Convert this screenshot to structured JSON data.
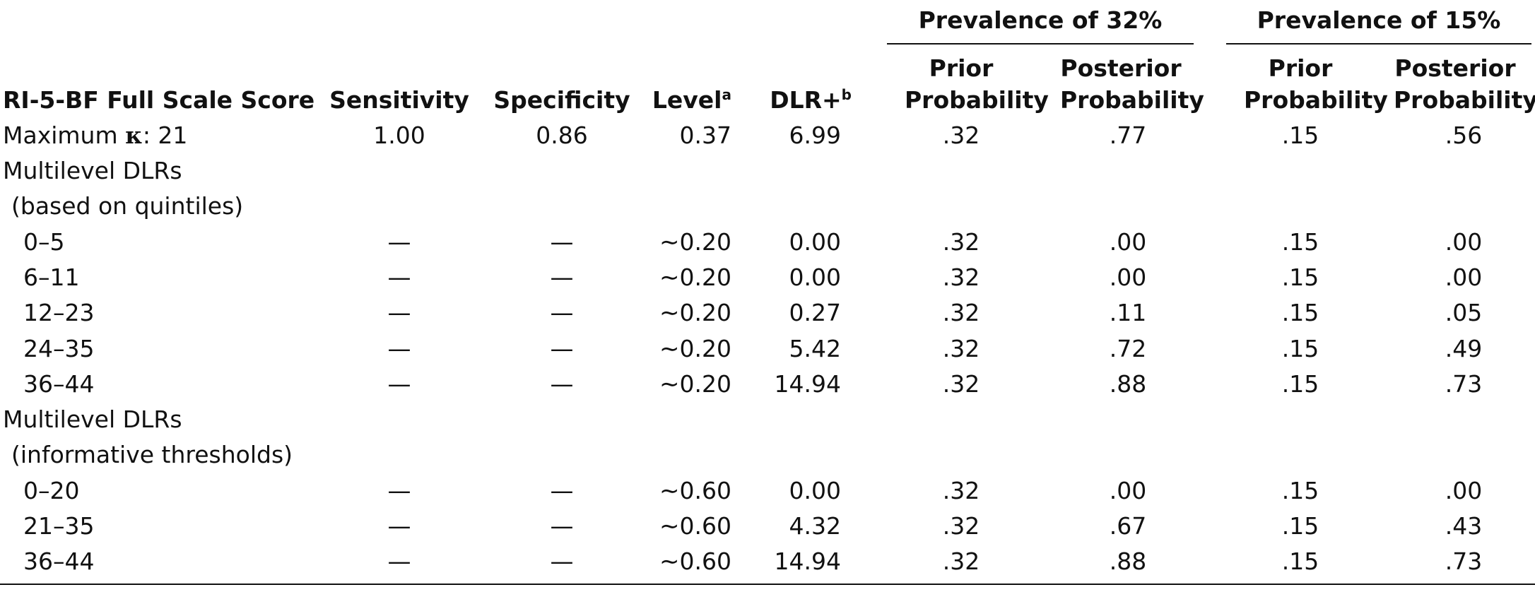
{
  "table": {
    "groups": [
      {
        "label": "Prevalence of 32%"
      },
      {
        "label": "Prevalence of 15%"
      }
    ],
    "headers": {
      "score": "RI-5-BF Full Scale Score",
      "sensitivity": "Sensitivity",
      "specificity": "Specificity",
      "level": "Level",
      "level_sup": "a",
      "dlr": "DLR+",
      "dlr_sup": "b",
      "prior_line1": "Prior",
      "prior_line2": "Probability",
      "posterior_line1": "Posterior",
      "posterior_line2": "Probability"
    },
    "max_kappa": {
      "prefix": "Maximum ",
      "kappa": "κ",
      "suffix": ": 21",
      "sensitivity": "1.00",
      "specificity": "0.86",
      "level": "0.37",
      "dlr": "6.99",
      "prior32": ".32",
      "post32": ".77",
      "prior15": ".15",
      "post15": ".56"
    },
    "sections": [
      {
        "title1": "Multilevel DLRs",
        "title2": "(based on quintiles)",
        "rows": [
          {
            "range": "0–5",
            "sens": "—",
            "spec": "—",
            "level": "0.20",
            "dlr": "0.00",
            "prior32": ".32",
            "post32": ".00",
            "prior15": ".15",
            "post15": ".00"
          },
          {
            "range": "6–11",
            "sens": "—",
            "spec": "—",
            "level": "0.20",
            "dlr": "0.00",
            "prior32": ".32",
            "post32": ".00",
            "prior15": ".15",
            "post15": ".00"
          },
          {
            "range": "12–23",
            "sens": "—",
            "spec": "—",
            "level": "0.20",
            "dlr": "0.27",
            "prior32": ".32",
            "post32": ".11",
            "prior15": ".15",
            "post15": ".05"
          },
          {
            "range": "24–35",
            "sens": "—",
            "spec": "—",
            "level": "0.20",
            "dlr": "5.42",
            "prior32": ".32",
            "post32": ".72",
            "prior15": ".15",
            "post15": ".49"
          },
          {
            "range": "36–44",
            "sens": "—",
            "spec": "—",
            "level": "0.20",
            "dlr": "14.94",
            "prior32": ".32",
            "post32": ".88",
            "prior15": ".15",
            "post15": ".73"
          }
        ]
      },
      {
        "title1": "Multilevel DLRs",
        "title2": "(informative thresholds)",
        "rows": [
          {
            "range": "0–20",
            "sens": "—",
            "spec": "—",
            "level": "0.60",
            "dlr": "0.00",
            "prior32": ".32",
            "post32": ".00",
            "prior15": ".15",
            "post15": ".00"
          },
          {
            "range": "21–35",
            "sens": "—",
            "spec": "—",
            "level": "0.60",
            "dlr": "4.32",
            "prior32": ".32",
            "post32": ".67",
            "prior15": ".15",
            "post15": ".43"
          },
          {
            "range": "36–44",
            "sens": "—",
            "spec": "—",
            "level": "0.60",
            "dlr": "14.94",
            "prior32": ".32",
            "post32": ".88",
            "prior15": ".15",
            "post15": ".73"
          }
        ]
      }
    ],
    "tilde": "∼"
  }
}
